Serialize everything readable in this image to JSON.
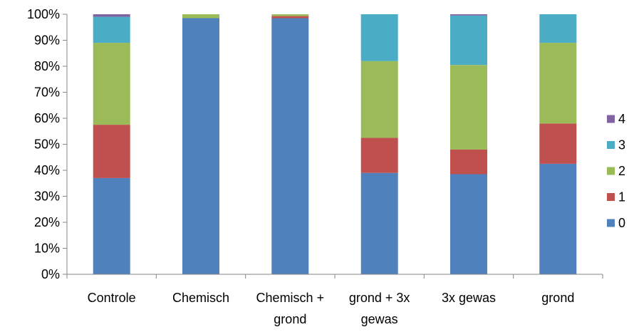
{
  "chart_data": {
    "type": "bar",
    "stacked": true,
    "percent": true,
    "categories": [
      [
        "Controle"
      ],
      [
        "Chemisch"
      ],
      [
        "Chemisch +",
        "grond"
      ],
      [
        "grond + 3x",
        "gewas"
      ],
      [
        "3x gewas"
      ],
      [
        "grond"
      ]
    ],
    "series": [
      {
        "name": "0",
        "color": "#4F81BD",
        "values": [
          37.0,
          98.5,
          98.5,
          39.0,
          38.5,
          42.5
        ]
      },
      {
        "name": "1",
        "color": "#C0504D",
        "values": [
          20.5,
          0.0,
          0.8,
          13.5,
          9.5,
          15.5
        ]
      },
      {
        "name": "2",
        "color": "#9BBB59",
        "values": [
          31.5,
          1.5,
          0.7,
          29.5,
          32.5,
          31.0
        ]
      },
      {
        "name": "3",
        "color": "#4BACC6",
        "values": [
          10.0,
          0.0,
          0.0,
          18.0,
          19.0,
          11.0
        ]
      },
      {
        "name": "4",
        "color": "#8064A2",
        "values": [
          1.0,
          0.0,
          0.0,
          0.0,
          0.5,
          0.0
        ]
      }
    ],
    "yticks": [
      "0%",
      "10%",
      "20%",
      "30%",
      "40%",
      "50%",
      "60%",
      "70%",
      "80%",
      "90%",
      "100%"
    ],
    "ylim": [
      0,
      100
    ],
    "legend_order": [
      "4",
      "3",
      "2",
      "1",
      "0"
    ],
    "legend_position": "right",
    "grid": false
  }
}
